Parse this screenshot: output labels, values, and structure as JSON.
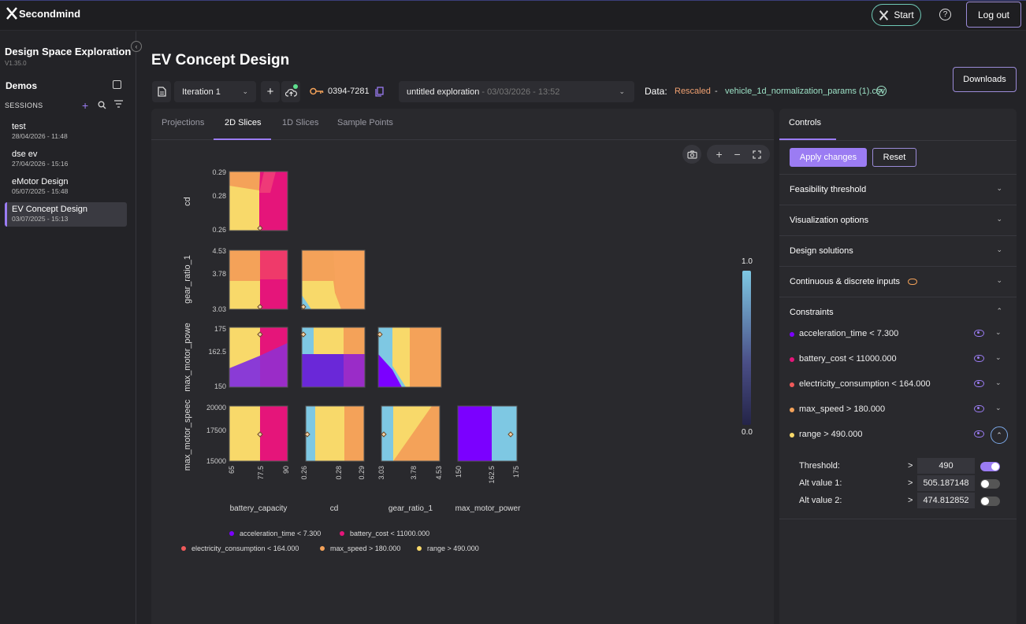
{
  "header": {
    "brand": "Secondmind",
    "start_label": "Start",
    "help_label": "?",
    "logout_label": "Log out"
  },
  "sidebar": {
    "title": "Design Space Exploration",
    "version": "V1.35.0",
    "demos_label": "Demos",
    "sessions_label": "SESSIONS",
    "sessions": [
      {
        "name": "test",
        "date": "28/04/2026 - 11:48"
      },
      {
        "name": "dse ev",
        "date": "27/04/2026 - 15:16"
      },
      {
        "name": "eMotor Design",
        "date": "05/07/2025 - 15:48"
      },
      {
        "name": "EV Concept Design",
        "date": "03/07/2025 - 15:13"
      }
    ]
  },
  "main": {
    "title": "EV Concept Design",
    "iteration": "Iteration 1",
    "key_code": "0394-7281",
    "exploration": "untitled exploration",
    "exploration_date": " - 03/03/2026 - 13:52",
    "data_label": "Data:",
    "rescaled": "Rescaled",
    "dash": "-",
    "file": "vehicle_1d_normalization_params (1).csv",
    "downloads_label": "Downloads",
    "tabs": [
      "Projections",
      "2D Slices",
      "1D Slices",
      "Sample Points"
    ]
  },
  "plot": {
    "row_labels": [
      "cd",
      "gear_ratio_1",
      "max_motor_powe",
      "max_motor_speec"
    ],
    "col_labels": [
      "battery_capacity",
      "cd",
      "gear_ratio_1",
      "max_motor_power"
    ],
    "y_ticks": [
      [
        "0.29",
        "0.28",
        "0.26"
      ],
      [
        "4.53",
        "3.78",
        "3.03"
      ],
      [
        "175",
        "162.5",
        "150"
      ],
      [
        "20000",
        "17500",
        "15000"
      ]
    ],
    "x_ticks": [
      [
        "65",
        "77.5",
        "90"
      ],
      [
        "0.26",
        "0.28",
        "0.29"
      ],
      [
        "3.03",
        "3.78",
        "4.53"
      ],
      [
        "150",
        "162.5",
        "175"
      ]
    ],
    "colorbar": {
      "max": "1.0",
      "min": "0.0"
    },
    "legend": [
      {
        "label": "acceleration_time < 7.300",
        "color": "#7b00ff"
      },
      {
        "label": "battery_cost < 11000.000",
        "color": "#e5157a"
      },
      {
        "label": "electricity_consumption < 164.000",
        "color": "#ef5a5a"
      },
      {
        "label": "max_speed > 180.000",
        "color": "#f4a259"
      },
      {
        "label": "range > 490.000",
        "color": "#f8d96a"
      }
    ]
  },
  "controls": {
    "tab": "Controls",
    "apply_label": "Apply changes",
    "reset_label": "Reset",
    "sections": [
      "Feasibility threshold",
      "Visualization options",
      "Design solutions",
      "Continuous & discrete inputs",
      "Constraints"
    ],
    "constraints": [
      {
        "label": "acceleration_time < 7.300",
        "color": "#7b00ff"
      },
      {
        "label": "battery_cost < 11000.000",
        "color": "#e5157a"
      },
      {
        "label": "electricity_consumption < 164.000",
        "color": "#ef5a5a"
      },
      {
        "label": "max_speed > 180.000",
        "color": "#f4a259"
      },
      {
        "label": "range > 490.000",
        "color": "#f8d96a"
      }
    ],
    "thresholds": [
      {
        "label": "Threshold:",
        "op": ">",
        "value": "490",
        "on": true
      },
      {
        "label": "Alt value 1:",
        "op": ">",
        "value": "505.187148",
        "on": false
      },
      {
        "label": "Alt value 2:",
        "op": ">",
        "value": "474.812852",
        "on": false
      }
    ]
  }
}
